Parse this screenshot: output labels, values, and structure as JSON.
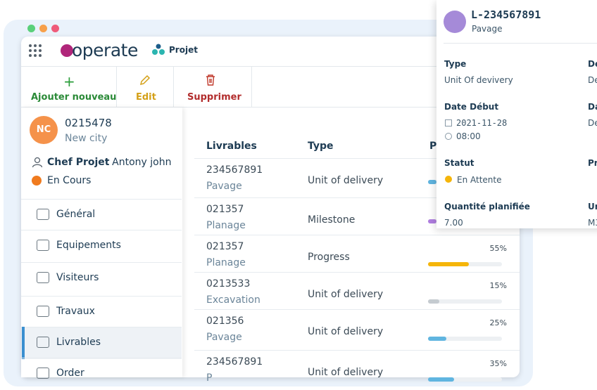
{
  "app": {
    "logo": "operate",
    "module": "Projet"
  },
  "toolbar": [
    {
      "label": "Ajouter nouveau",
      "icon": "+"
    },
    {
      "label": "Edit"
    },
    {
      "label": "Supprimer"
    }
  ],
  "project": {
    "initials": "NC",
    "code": "0215478",
    "city": "New city",
    "chef_label": "Chef Projet",
    "chef_name": ": Antony john",
    "status": "En Cours"
  },
  "menu": [
    "Général",
    "Equipements",
    "Visiteurs",
    "Travaux",
    "Livrables",
    "Order"
  ],
  "table": {
    "headers": [
      "Livrables",
      "Type",
      "P"
    ],
    "rows": [
      {
        "code": "234567891",
        "sub": "Pavage",
        "type": "Unit of delivery"
      },
      {
        "code": "021357",
        "sub": "Planage",
        "type": "Milestone"
      },
      {
        "code": "021357",
        "sub": "Planage",
        "type": "Progress",
        "progress": 55,
        "progress_label": "55%"
      },
      {
        "code": "0213533",
        "sub": "Excavation",
        "type": "Unit of delivery",
        "progress": 15,
        "progress_label": "15%"
      },
      {
        "code": "021356",
        "sub": "Pavage",
        "type": "Unit of delivery",
        "progress": 25,
        "progress_label": "25%"
      },
      {
        "code": "234567891",
        "sub": "P",
        "type": "Unit of delivery",
        "progress": 35,
        "progress_label": "35%"
      }
    ]
  },
  "detail": {
    "title": "L-234567891",
    "subtitle": "Pavage",
    "type_label": "Type",
    "type_value": "Unit Of devivery",
    "date_label": "Date Début",
    "date_value": "2021-11-28",
    "time_value": "08:00",
    "status_label": "Statut",
    "status_value": "En Attente",
    "qty_label": "Quantité planifiée",
    "qty_value": "7.00",
    "right": [
      "De",
      "De",
      "Da",
      "De",
      "Pr",
      "Ur",
      "M3"
    ]
  }
}
